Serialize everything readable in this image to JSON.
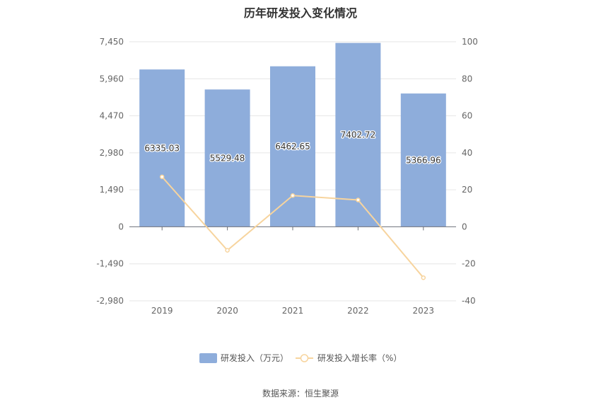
{
  "chart_data": {
    "type": "bar",
    "title": "历年研发投入变化情况",
    "categories": [
      "2019",
      "2020",
      "2021",
      "2022",
      "2023"
    ],
    "series": [
      {
        "name": "研发投入（万元）",
        "type": "bar",
        "axis": "left",
        "values": [
          6335.03,
          5529.48,
          6462.65,
          7402.72,
          5366.96
        ],
        "labels": [
          "6335.03",
          "5529.48",
          "6462.65",
          "7402.72",
          "5366.96"
        ],
        "color": "#8eaddb"
      },
      {
        "name": "研发投入增长率（%）",
        "type": "line",
        "axis": "right",
        "values": [
          27.0,
          -12.7,
          16.9,
          14.5,
          -27.5
        ],
        "color": "#f7d49e"
      }
    ],
    "y_left": {
      "min": -2980,
      "max": 7450,
      "ticks": [
        "7,450",
        "5,960",
        "4,470",
        "2,980",
        "1,490",
        "0",
        "-1,490",
        "-2,980"
      ]
    },
    "y_right": {
      "min": -40,
      "max": 100,
      "ticks": [
        "100",
        "80",
        "60",
        "40",
        "20",
        "0",
        "-20",
        "-40"
      ]
    },
    "grid": true,
    "legend": "bottom-center",
    "source": "数据来源：恒生聚源"
  }
}
